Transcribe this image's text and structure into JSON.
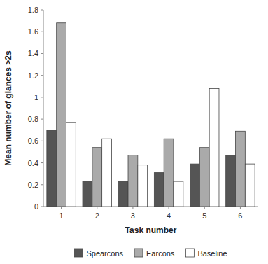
{
  "chart_data": {
    "type": "bar",
    "xlabel": "Task number",
    "ylabel": "Mean number of glances >2s",
    "categories": [
      "1",
      "2",
      "3",
      "4",
      "5",
      "6"
    ],
    "series": [
      {
        "name": "Spearcons",
        "color": "#555555",
        "values": [
          0.7,
          0.23,
          0.23,
          0.31,
          0.39,
          0.47
        ]
      },
      {
        "name": "Earcons",
        "color": "#aaaaaa",
        "values": [
          1.68,
          0.54,
          0.47,
          0.62,
          0.54,
          0.69
        ]
      },
      {
        "name": "Baseline",
        "color": "#ffffff",
        "values": [
          0.77,
          0.62,
          0.38,
          0.23,
          1.08,
          0.39
        ]
      }
    ],
    "ylim": [
      0,
      1.8
    ],
    "yticks": [
      0,
      0.2,
      0.4,
      0.6,
      0.8,
      1,
      1.2,
      1.4,
      1.6,
      1.8
    ],
    "grid": false,
    "legend": "bottom"
  }
}
